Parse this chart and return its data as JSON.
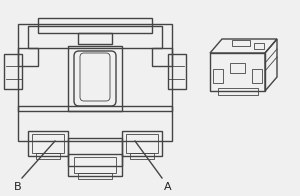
{
  "bg_color": "#f0f0f0",
  "line_color": "#444444",
  "label_A": "A",
  "label_B": "B",
  "label_color": "#222222",
  "label_fontsize": 8,
  "lw": 1.0,
  "tlw": 0.6
}
